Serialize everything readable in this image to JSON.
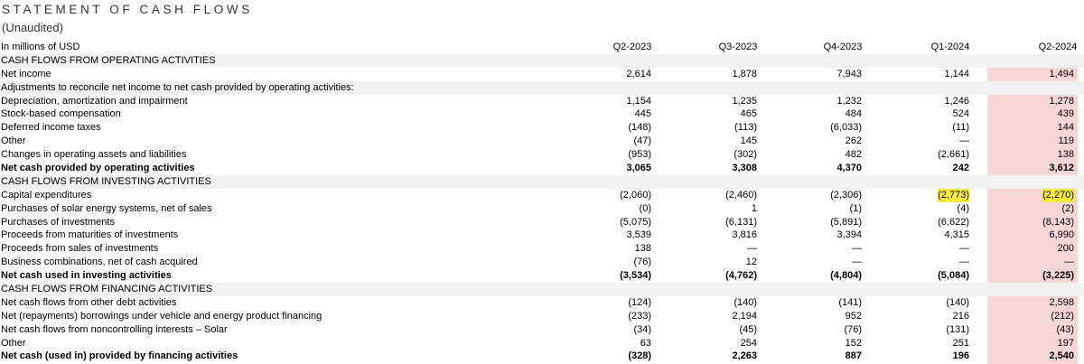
{
  "header": {
    "title": "STATEMENT OF CASH FLOWS",
    "subtitle": "(Unaudited)"
  },
  "columns": {
    "label": "In millions of USD",
    "periods": [
      "Q2-2023",
      "Q3-2023",
      "Q4-2023",
      "Q1-2024",
      "Q2-2024"
    ]
  },
  "rows": [
    {
      "label": "CASH FLOWS FROM OPERATING ACTIVITIES",
      "values": [
        "",
        "",
        "",
        "",
        ""
      ],
      "style": "section"
    },
    {
      "label": "Net income",
      "values": [
        "2,614",
        "1,878",
        "7,943",
        "1,144",
        "1,494"
      ],
      "style": "normal"
    },
    {
      "label": "Adjustments to reconcile net income to net cash provided by operating activities:",
      "values": [
        "",
        "",
        "",
        "",
        ""
      ],
      "style": "section"
    },
    {
      "label": "Depreciation, amortization and impairment",
      "values": [
        "1,154",
        "1,235",
        "1,232",
        "1,246",
        "1,278"
      ],
      "style": "normal"
    },
    {
      "label": "Stock-based compensation",
      "values": [
        "445",
        "465",
        "484",
        "524",
        "439"
      ],
      "style": "normal"
    },
    {
      "label": "Deferred income taxes",
      "values": [
        "(148)",
        "(113)",
        "(6,033)",
        "(11)",
        "144"
      ],
      "style": "normal"
    },
    {
      "label": "Other",
      "values": [
        "(47)",
        "145",
        "262",
        "—",
        "119"
      ],
      "style": "normal"
    },
    {
      "label": "Changes in operating assets and liabilities",
      "values": [
        "(953)",
        "(302)",
        "482",
        "(2,661)",
        "138"
      ],
      "style": "normal"
    },
    {
      "label": "Net cash provided by operating activities",
      "values": [
        "3,065",
        "3,308",
        "4,370",
        "242",
        "3,612"
      ],
      "style": "total"
    },
    {
      "label": "CASH FLOWS FROM INVESTING ACTIVITIES",
      "values": [
        "",
        "",
        "",
        "",
        ""
      ],
      "style": "section"
    },
    {
      "label": "Capital expenditures",
      "values": [
        "(2,060)",
        "(2,460)",
        "(2,306)",
        "(2,773)",
        "(2,270)"
      ],
      "style": "normal",
      "highlight": [
        3,
        4
      ]
    },
    {
      "label": "Purchases of solar energy systems, net of sales",
      "values": [
        "(0)",
        "1",
        "(1)",
        "(4)",
        "(2)"
      ],
      "style": "normal"
    },
    {
      "label": "Purchases of investments",
      "values": [
        "(5,075)",
        "(6,131)",
        "(5,891)",
        "(6,622)",
        "(8,143)"
      ],
      "style": "normal"
    },
    {
      "label": "Proceeds from maturities of investments",
      "values": [
        "3,539",
        "3,816",
        "3,394",
        "4,315",
        "6,990"
      ],
      "style": "normal"
    },
    {
      "label": "Proceeds from sales of investments",
      "values": [
        "138",
        "—",
        "—",
        "—",
        "200"
      ],
      "style": "normal"
    },
    {
      "label": "Business combinations, net of cash acquired",
      "values": [
        "(76)",
        "12",
        "—",
        "—",
        "—"
      ],
      "style": "normal"
    },
    {
      "label": "Net cash used in investing activities",
      "values": [
        "(3,534)",
        "(4,762)",
        "(4,804)",
        "(5,084)",
        "(3,225)"
      ],
      "style": "total"
    },
    {
      "label": "CASH FLOWS FROM FINANCING ACTIVITIES",
      "values": [
        "",
        "",
        "",
        "",
        ""
      ],
      "style": "section"
    },
    {
      "label": "Net cash flows from other debt activities",
      "values": [
        "(124)",
        "(140)",
        "(141)",
        "(140)",
        "2,598"
      ],
      "style": "normal"
    },
    {
      "label": "Net (repayments) borrowings under vehicle and energy product financing",
      "values": [
        "(233)",
        "2,194",
        "952",
        "216",
        "(212)"
      ],
      "style": "normal"
    },
    {
      "label": "Net cash flows from noncontrolling interests – Solar",
      "values": [
        "(34)",
        "(45)",
        "(76)",
        "(131)",
        "(43)"
      ],
      "style": "normal"
    },
    {
      "label": "Other",
      "values": [
        "63",
        "254",
        "152",
        "251",
        "197"
      ],
      "style": "normal"
    },
    {
      "label": "Net cash (used in) provided by financing activities",
      "values": [
        "(328)",
        "2,263",
        "887",
        "196",
        "2,540"
      ],
      "style": "total"
    }
  ],
  "colors": {
    "highlight_column": "#f7d6d6",
    "highlight_marker": "#ffec3d",
    "shaded_row": "#f2f2f2"
  }
}
